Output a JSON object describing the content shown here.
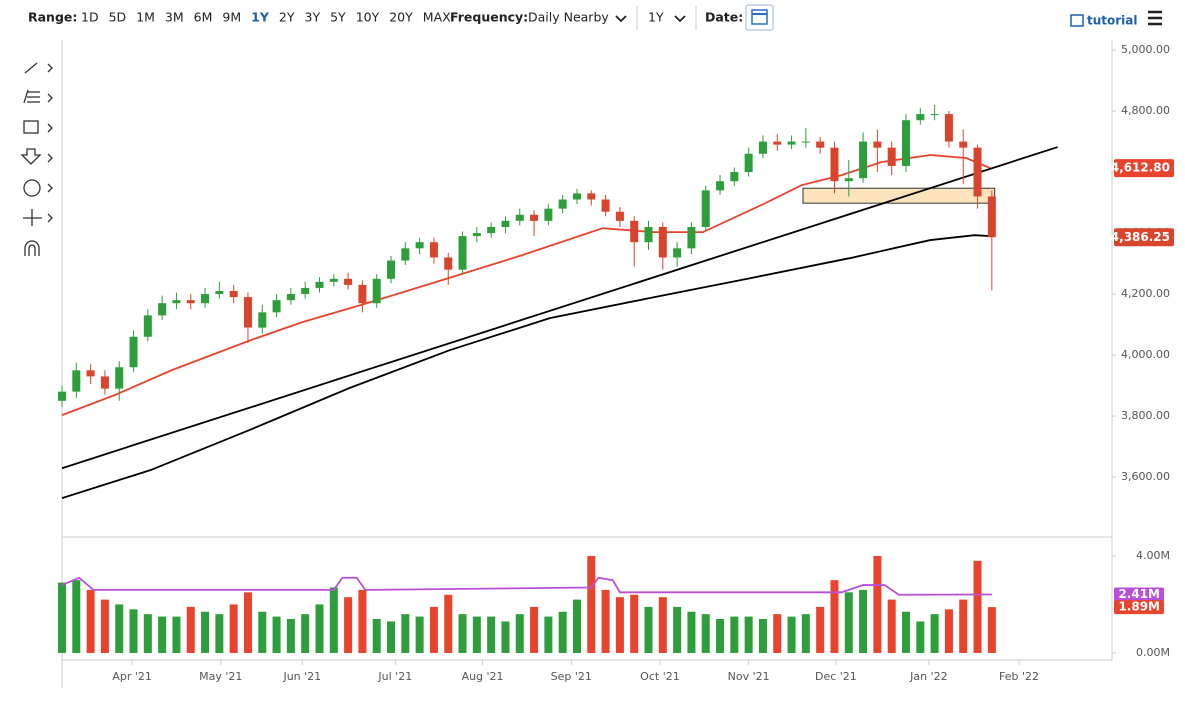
{
  "toolbar": {
    "range_label": "Range:",
    "ranges": [
      "1D",
      "5D",
      "1M",
      "3M",
      "6M",
      "9M",
      "1Y",
      "2Y",
      "3Y",
      "5Y",
      "10Y",
      "20Y",
      "MAX"
    ],
    "active_range": "1Y",
    "frequency_label": "Frequency:",
    "frequency": "Daily Nearby",
    "period": "1Y",
    "date_label": "Date:",
    "tutorial": "tutorial"
  },
  "chart_data": [
    {
      "type": "candlestick",
      "up_color": "#2e9d3c",
      "down_color": "#d9442c",
      "xlim": [
        0,
        73.4
      ],
      "xticks": [
        {
          "value": 4.9,
          "label": "Apr '21"
        },
        {
          "value": 11.1,
          "label": "May '21"
        },
        {
          "value": 16.8,
          "label": "Jun '21"
        },
        {
          "value": 23.3,
          "label": "Jul '21"
        },
        {
          "value": 29.4,
          "label": "Aug '21"
        },
        {
          "value": 35.6,
          "label": "Sep '21"
        },
        {
          "value": 41.8,
          "label": "Oct '21"
        },
        {
          "value": 48,
          "label": "Nov '21"
        },
        {
          "value": 54.1,
          "label": "Dec '21"
        },
        {
          "value": 60.6,
          "label": "Jan '22"
        },
        {
          "value": 66.9,
          "label": "Feb '22"
        }
      ],
      "ylim": [
        3410,
        5033
      ],
      "yticks": [
        {
          "value": 3600,
          "label": "3,600.00"
        },
        {
          "value": 3800,
          "label": "3,800.00"
        },
        {
          "value": 4000,
          "label": "4,000.00"
        },
        {
          "value": 4200,
          "label": "4,200.00"
        },
        {
          "value": 4400,
          "label": "4,400.00"
        },
        {
          "value": 4600,
          "label": "4,600.00"
        },
        {
          "value": 4800,
          "label": "4,800.00"
        },
        {
          "value": 5000,
          "label": "5,000.00"
        }
      ],
      "open": [
        3850,
        3880,
        3950,
        3930,
        3890,
        3960,
        4060,
        4130,
        4170,
        4180,
        4170,
        4200,
        4210,
        4190,
        4090,
        4140,
        4180,
        4200,
        4220,
        4240,
        4250,
        4230,
        4170,
        4250,
        4310,
        4350,
        4370,
        4320,
        4280,
        4390,
        4400,
        4420,
        4440,
        4460,
        4440,
        4480,
        4510,
        4530,
        4510,
        4470,
        4440,
        4370,
        4420,
        4320,
        4350,
        4420,
        4540,
        4570,
        4600,
        4660,
        4700,
        4690,
        4700,
        4700,
        4680,
        4570,
        4580,
        4700,
        4680,
        4620,
        4770,
        4790,
        4790,
        4700,
        4680,
        4520
      ],
      "high": [
        3900,
        3975,
        3970,
        3950,
        3980,
        4080,
        4150,
        4195,
        4205,
        4200,
        4220,
        4240,
        4230,
        4205,
        4165,
        4200,
        4220,
        4240,
        4255,
        4265,
        4270,
        4245,
        4265,
        4325,
        4370,
        4385,
        4385,
        4335,
        4405,
        4420,
        4435,
        4455,
        4480,
        4475,
        4495,
        4525,
        4545,
        4540,
        4525,
        4485,
        4455,
        4440,
        4435,
        4370,
        4435,
        4555,
        4590,
        4615,
        4680,
        4720,
        4725,
        4720,
        4745,
        4715,
        4700,
        4640,
        4730,
        4740,
        4700,
        4790,
        4810,
        4820,
        4800,
        4740,
        4690,
        4540
      ],
      "low": [
        3830,
        3860,
        3905,
        3870,
        3850,
        3945,
        4045,
        4115,
        4150,
        4150,
        4155,
        4185,
        4170,
        4040,
        4070,
        4125,
        4165,
        4185,
        4205,
        4225,
        4215,
        4140,
        4155,
        4235,
        4295,
        4330,
        4300,
        4230,
        4265,
        4370,
        4385,
        4400,
        4425,
        4390,
        4425,
        4465,
        4495,
        4490,
        4455,
        4420,
        4290,
        4345,
        4280,
        4290,
        4330,
        4405,
        4525,
        4555,
        4585,
        4645,
        4670,
        4675,
        4680,
        4660,
        4530,
        4520,
        4565,
        4600,
        4590,
        4600,
        4755,
        4770,
        4680,
        4560,
        4480,
        4212
      ],
      "close": [
        3880,
        3950,
        3930,
        3890,
        3960,
        4060,
        4130,
        4170,
        4180,
        4170,
        4200,
        4210,
        4190,
        4090,
        4140,
        4180,
        4200,
        4220,
        4240,
        4250,
        4230,
        4170,
        4250,
        4310,
        4350,
        4370,
        4320,
        4280,
        4390,
        4400,
        4420,
        4440,
        4460,
        4440,
        4480,
        4510,
        4530,
        4510,
        4470,
        4440,
        4370,
        4420,
        4320,
        4350,
        4420,
        4540,
        4570,
        4600,
        4660,
        4700,
        4690,
        4700,
        4700,
        4680,
        4570,
        4580,
        4700,
        4680,
        4620,
        4770,
        4790,
        4790,
        4700,
        4680,
        4520,
        4386.25
      ],
      "close_label": "4,386.25",
      "series": [
        {
          "color": "#e8432d",
          "x": [
            0,
            3.7,
            7.7,
            13.2,
            16.8,
            20.9,
            26.6,
            32.2,
            37.8,
            41.3,
            44.8,
            48.9,
            51.7,
            54.5,
            57.3,
            60.7,
            63.2,
            64.9
          ],
          "values": [
            3803,
            3869,
            3951,
            4049,
            4108,
            4164,
            4246,
            4328,
            4416,
            4403,
            4403,
            4492,
            4557,
            4590,
            4633,
            4656,
            4646,
            4612.8
          ],
          "last_label": "4,612.80"
        },
        {
          "color": "#000000",
          "x": [
            0,
            6.2,
            13.1,
            20.1,
            27.1,
            34.1,
            41.1,
            48.1,
            55.1,
            60.7,
            63.8,
            64.9
          ],
          "values": [
            3531,
            3623,
            3754,
            3892,
            4016,
            4121,
            4187,
            4252,
            4318,
            4377,
            4393,
            4390
          ]
        }
      ],
      "trendline": {
        "color": "#000000",
        "x": [
          0,
          69.6
        ],
        "values": [
          3629,
          4682
        ]
      },
      "zone": {
        "color": "#fde4bd",
        "x": [
          51.8,
          65.2
        ],
        "values": [
          4498,
          4547
        ]
      }
    },
    {
      "type": "bar",
      "up_color": "#2e9d3c",
      "down_color": "#e8432d",
      "ylim": [
        -0.29,
        4.74
      ],
      "yticks": [
        {
          "value": 0,
          "label": "0.00M"
        },
        {
          "value": 4,
          "label": "4.00M"
        }
      ],
      "values": [
        2.9,
        3.0,
        2.6,
        2.2,
        2.0,
        1.8,
        1.6,
        1.5,
        1.5,
        1.9,
        1.7,
        1.6,
        2.0,
        2.5,
        1.7,
        1.5,
        1.4,
        1.6,
        2.0,
        2.7,
        2.3,
        2.6,
        1.4,
        1.3,
        1.6,
        1.5,
        1.9,
        2.4,
        1.6,
        1.5,
        1.5,
        1.3,
        1.6,
        1.9,
        1.5,
        1.7,
        2.2,
        4.0,
        2.6,
        2.3,
        2.4,
        1.9,
        2.3,
        1.9,
        1.7,
        1.6,
        1.4,
        1.5,
        1.5,
        1.4,
        1.6,
        1.5,
        1.6,
        1.9,
        3.0,
        2.5,
        2.6,
        4.0,
        2.2,
        1.7,
        1.3,
        1.6,
        1.8,
        2.2,
        3.8,
        1.89
      ],
      "last_label": "1.89M",
      "average": {
        "color": "#b84fd6",
        "x": [
          0,
          1.2,
          2.2,
          19,
          19.6,
          20.6,
          21.2,
          37,
          37.5,
          38.5,
          39,
          54.5,
          56,
          57.5,
          58.5,
          65
        ],
        "values": [
          2.8,
          3.1,
          2.6,
          2.6,
          3.1,
          3.1,
          2.6,
          2.7,
          3.1,
          3.0,
          2.5,
          2.5,
          2.8,
          2.8,
          2.4,
          2.41
        ],
        "last_label": "2.41M"
      }
    }
  ]
}
